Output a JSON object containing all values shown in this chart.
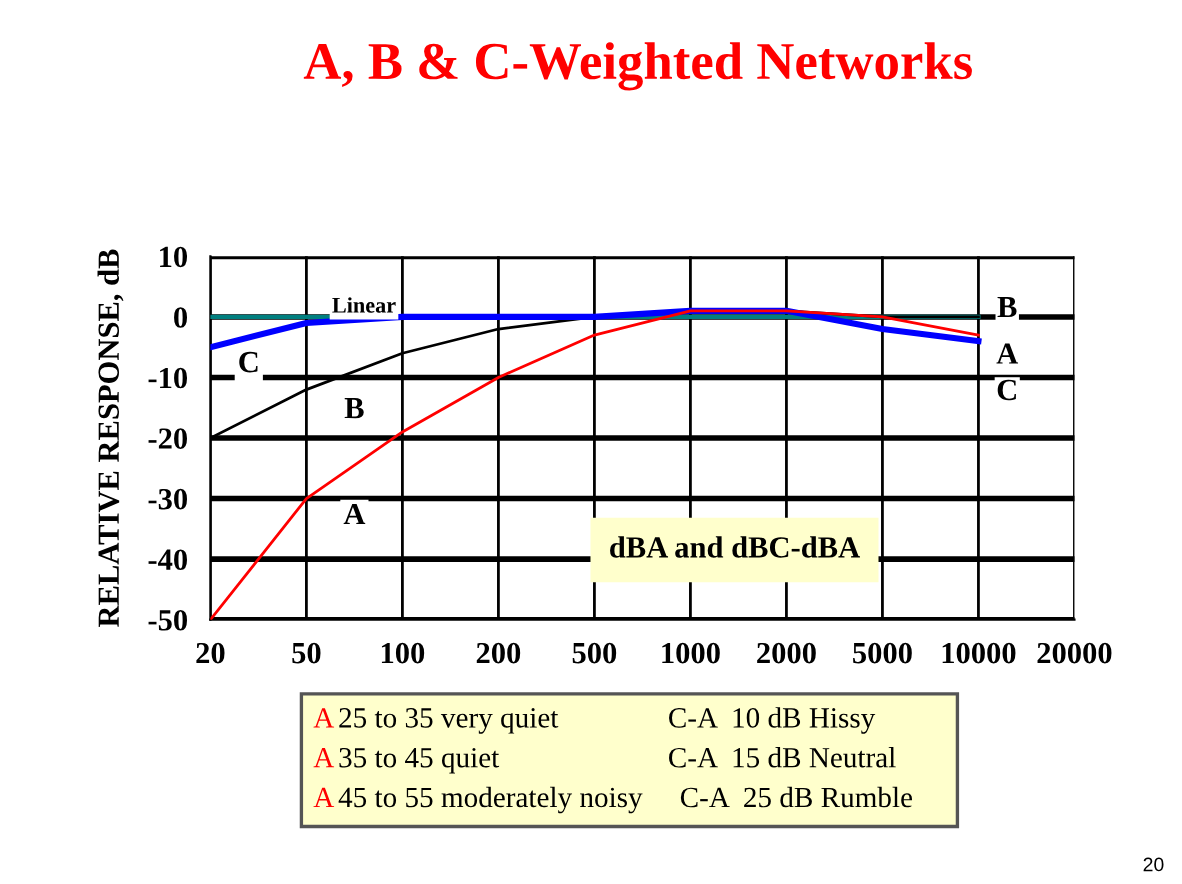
{
  "chart_data": {
    "type": "line",
    "title": "A, B & C-Weighted Networks",
    "ylabel": "RELATIVE RESPONSE, dB",
    "categories": [
      "20",
      "50",
      "100",
      "200",
      "500",
      "1000",
      "2000",
      "5000",
      "10000",
      "20000"
    ],
    "series": [
      {
        "name": "Linear",
        "color": "#008080",
        "values": [
          0,
          0,
          0,
          0,
          0,
          0,
          0,
          0,
          0,
          null
        ]
      },
      {
        "name": "B",
        "color": "#000000",
        "values": [
          -20,
          -12,
          -6,
          -2,
          0,
          1,
          1,
          0,
          0,
          null
        ]
      },
      {
        "name": "A",
        "color": "#ff0000",
        "values": [
          -50,
          -30,
          -19,
          -10,
          -3,
          1,
          1,
          0,
          -3,
          null
        ]
      },
      {
        "name": "C",
        "color": "#0000ff",
        "values": [
          -5,
          -1,
          0,
          0,
          0,
          1,
          1,
          -2,
          -4,
          null
        ]
      }
    ],
    "ylim": [
      -50,
      10
    ],
    "yticks": [
      -50,
      -40,
      -30,
      -20,
      -10,
      0,
      10
    ],
    "grid": true,
    "marker": "none",
    "line_style": "solid",
    "annotations": [
      "dBA and dBC-dBA",
      "A 25 to 35 very quiet",
      "A 35 to 45 quiet",
      "A 45 to 55 moderately noisy",
      "C-A  10 dB Hissy",
      "C-A  15 dB Neutral",
      "C-A  25 dB Rumble",
      "20"
    ]
  }
}
